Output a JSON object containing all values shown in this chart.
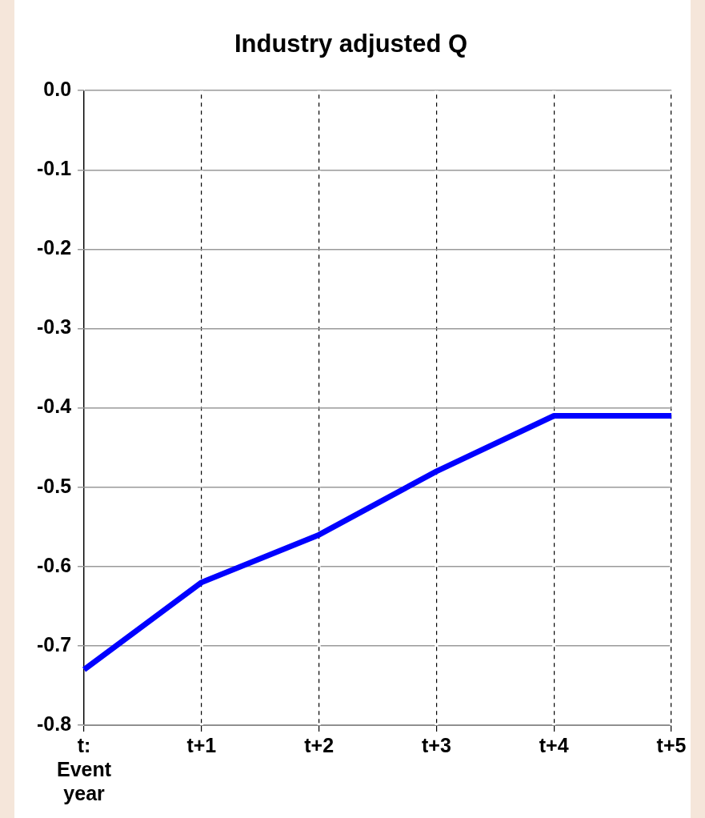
{
  "chart_data": {
    "type": "line",
    "title": "Industry adjusted Q",
    "categories": [
      "t:\nEvent\nyear",
      "t+1",
      "t+2",
      "t+3",
      "t+4",
      "t+5"
    ],
    "series": [
      {
        "color": "#0000ff",
        "values": [
          -0.73,
          -0.62,
          -0.56,
          -0.48,
          -0.41,
          -0.41
        ]
      }
    ],
    "ylim": [
      -0.8,
      0.0
    ],
    "yticks": [
      {
        "value": 0,
        "label": "0.0"
      },
      -0.1,
      -0.2,
      -0.3,
      -0.4,
      -0.5,
      -0.6,
      -0.7,
      -0.8
    ],
    "grid": true,
    "legend": false,
    "marker": "none",
    "line_style": "solid"
  }
}
